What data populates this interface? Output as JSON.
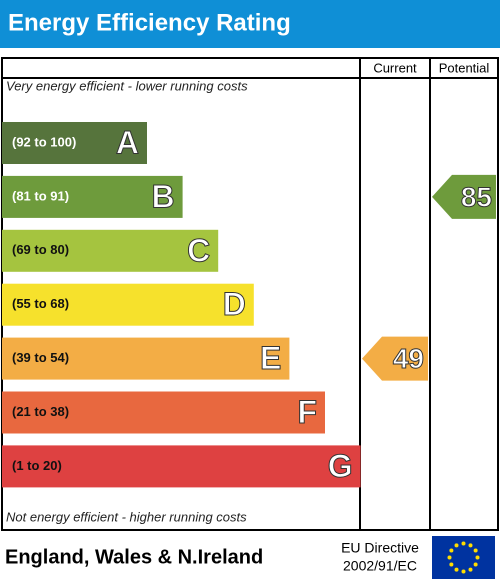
{
  "title": "Energy Efficiency Rating",
  "columns": {
    "current": "Current",
    "potential": "Potential"
  },
  "top_note": "Very energy efficient - lower running costs",
  "bottom_note": "Not energy efficient - higher running costs",
  "bands": [
    {
      "label": "(92 to 100)",
      "min": 92,
      "max": 100,
      "letter": "A",
      "color": "#56743c"
    },
    {
      "label": "(81 to 91)",
      "min": 81,
      "max": 91,
      "letter": "B",
      "color": "#6e9b3c"
    },
    {
      "label": "(69 to 80)",
      "min": 69,
      "max": 80,
      "letter": "C",
      "color": "#a5c43f"
    },
    {
      "label": "(55 to 68)",
      "min": 55,
      "max": 68,
      "letter": "D",
      "color": "#f6e12c"
    },
    {
      "label": "(39 to 54)",
      "min": 39,
      "max": 54,
      "letter": "E",
      "color": "#f3ad45"
    },
    {
      "label": "(21 to 38)",
      "min": 21,
      "max": 38,
      "letter": "F",
      "color": "#e8683f"
    },
    {
      "label": "(1 to 20)",
      "min": 1,
      "max": 20,
      "letter": "G",
      "color": "#de4141"
    }
  ],
  "current": {
    "value": 49
  },
  "potential": {
    "value": 85
  },
  "footer": {
    "region": "England, Wales & N.Ireland",
    "directive": "EU Directive",
    "directive_code": "2002/91/EC"
  }
}
